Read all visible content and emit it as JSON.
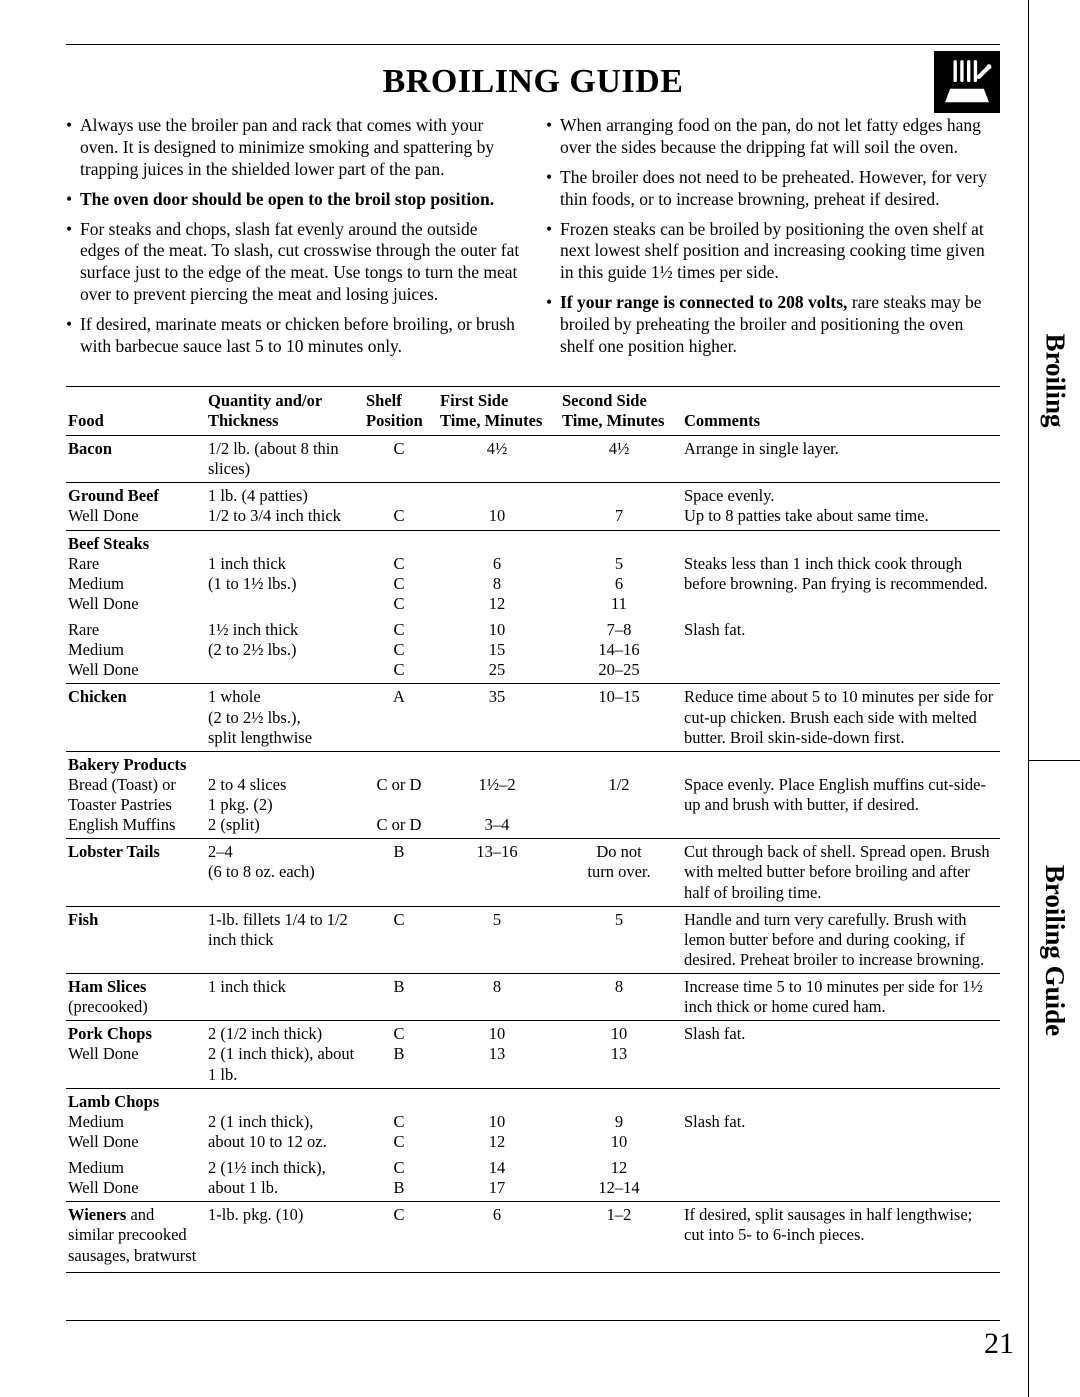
{
  "title": "BROILING GUIDE",
  "page_number": "21",
  "side_tabs": {
    "top": "Broiling",
    "bottom": "Broiling Guide"
  },
  "tips_left": [
    {
      "html": "Always use the broiler pan and rack that comes with your oven. It is designed to minimize smoking and spattering by trapping juices in the shielded lower part of the pan."
    },
    {
      "html": "<span class=\"bold\">The oven door should be open to the broil stop position.</span>"
    },
    {
      "html": "For steaks and chops, slash fat evenly around the outside edges of the meat. To slash, cut crosswise through the outer fat surface just to the edge of the meat. Use tongs to turn the meat over to prevent piercing the meat and losing juices."
    },
    {
      "html": "If desired, marinate meats or chicken before broiling, or brush with barbecue sauce last 5 to 10 minutes only."
    }
  ],
  "tips_right": [
    {
      "html": "When arranging food on the pan, do not let fatty edges hang over the sides because the dripping fat will soil the oven."
    },
    {
      "html": "The broiler does not need to be preheated. However, for very thin foods, or to increase browning, preheat if desired."
    },
    {
      "html": "Frozen steaks can be broiled by positioning the oven shelf at next lowest shelf position and increasing cooking time given in this guide 1½ times per side."
    },
    {
      "html": "<span class=\"bold\">If your range is connected to 208 volts,</span> rare steaks may be broiled by preheating the broiler and positioning the oven shelf one position higher."
    }
  ],
  "columns": [
    {
      "h1": "",
      "h2": "Food"
    },
    {
      "h1": "Quantity and/or",
      "h2": "Thickness"
    },
    {
      "h1": "Shelf",
      "h2": "Position"
    },
    {
      "h1": "First Side",
      "h2": "Time, Minutes"
    },
    {
      "h1": "Second Side",
      "h2": "Time, Minutes"
    },
    {
      "h1": "",
      "h2": "Comments"
    }
  ],
  "groups": [
    {
      "rows": [
        {
          "food": "<span class=\"fb\">Bacon</span>",
          "qty": "1/2 lb. (about 8 thin slices)",
          "shelf": "C",
          "t1": "4½",
          "t2": "4½",
          "com": "Arrange in single layer."
        }
      ]
    },
    {
      "rows": [
        {
          "food": "<span class=\"fb\">Ground Beef</span><br>Well Done",
          "qty": "1 lb. (4 patties)<br>1/2 to 3/4 inch thick",
          "shelf": "<br>C",
          "t1": "<br>10",
          "t2": "<br>7",
          "com": "Space evenly.<br>Up to 8 patties take about same time."
        }
      ]
    },
    {
      "rows": [
        {
          "food": "<span class=\"fb\">Beef Steaks</span><br>Rare<br>Medium<br>Well Done",
          "qty": "<br>1 inch thick<br>(1 to 1½ lbs.)",
          "shelf": "<br>C<br>C<br>C",
          "t1": "<br>6<br>8<br>12",
          "t2": "<br>5<br>6<br>11",
          "com": "<br>Steaks less than 1 inch thick cook through before browning. Pan frying is recommended."
        },
        {
          "food": "Rare<br>Medium<br>Well Done",
          "qty": "1½ inch thick<br>(2 to 2½ lbs.)",
          "shelf": "C<br>C<br>C",
          "t1": "10<br>15<br>25",
          "t2": "7–8<br>14–16<br>20–25",
          "com": "Slash fat."
        }
      ]
    },
    {
      "rows": [
        {
          "food": "<span class=\"fb\">Chicken</span>",
          "qty": "1 whole<br>(2 to 2½ lbs.),<br>split lengthwise",
          "shelf": "A",
          "t1": "35",
          "t2": "10–15",
          "com": "Reduce time about 5 to 10 minutes per side for cut-up chicken. Brush each side with melted butter. Broil skin-side-down first."
        }
      ]
    },
    {
      "rows": [
        {
          "food": "<span class=\"fb\">Bakery Products</span><br>Bread (Toast) or<br>Toaster Pastries<br>English Muffins",
          "qty": "<br>2 to 4 slices<br>1 pkg. (2)<br>2 (split)",
          "shelf": "<br>C or D<br><br>C or D",
          "t1": "<br>1½–2<br><br>3–4",
          "t2": "<br>1/2",
          "com": "<br>Space evenly. Place English muffins cut-side-up and brush with butter, if desired."
        }
      ]
    },
    {
      "rows": [
        {
          "food": "<span class=\"fb\">Lobster Tails</span>",
          "qty": "2–4<br>(6 to 8 oz. each)",
          "shelf": "B",
          "t1": "13–16",
          "t2": "Do not<br>turn over.",
          "com": "Cut through back of shell. Spread open. Brush with melted butter before broiling and after half of broiling time."
        }
      ]
    },
    {
      "rows": [
        {
          "food": "<span class=\"fb\">Fish</span>",
          "qty": "1-lb. fillets 1/4 to 1/2 inch thick",
          "shelf": "C",
          "t1": "5",
          "t2": "5",
          "com": "Handle and turn very carefully. Brush with lemon butter before and during cooking, if desired. Preheat broiler to increase browning."
        }
      ]
    },
    {
      "rows": [
        {
          "food": "<span class=\"fb\">Ham Slices</span><br>(precooked)",
          "qty": "1 inch thick",
          "shelf": "B",
          "t1": "8",
          "t2": "8",
          "com": "Increase time 5 to 10 minutes per side for 1½ inch thick or home cured ham."
        }
      ]
    },
    {
      "rows": [
        {
          "food": "<span class=\"fb\">Pork Chops</span><br>Well Done",
          "qty": "2 (1/2 inch thick)<br>2 (1 inch thick), about 1 lb.",
          "shelf": "C<br>B",
          "t1": "10<br>13",
          "t2": "10<br>13",
          "com": "Slash fat."
        }
      ]
    },
    {
      "rows": [
        {
          "food": "<span class=\"fb\">Lamb Chops</span><br>Medium<br>Well Done",
          "qty": "<br>2 (1 inch thick),<br>about 10 to 12 oz.",
          "shelf": "<br>C<br>C",
          "t1": "<br>10<br>12",
          "t2": "<br>9<br>10",
          "com": "<br>Slash fat."
        },
        {
          "food": "Medium<br>Well Done",
          "qty": "2 (1½ inch thick),<br>about 1 lb.",
          "shelf": "C<br>B",
          "t1": "14<br>17",
          "t2": "12<br>12–14",
          "com": ""
        }
      ]
    },
    {
      "rows": [
        {
          "food": "<span class=\"fb\">Wieners</span> and similar precooked sausages, bratwurst",
          "qty": "1-lb. pkg. (10)",
          "shelf": "C",
          "t1": "6",
          "t2": "1–2",
          "com": "If desired, split sausages in half lengthwise; cut into 5- to 6-inch pieces."
        }
      ]
    }
  ]
}
